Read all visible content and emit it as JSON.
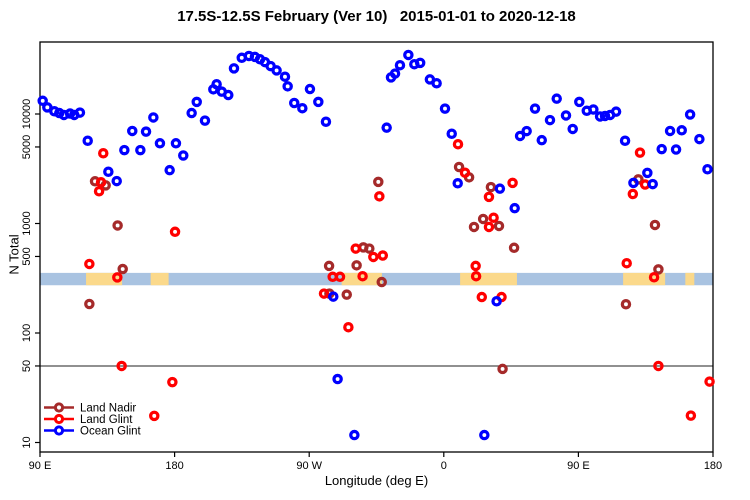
{
  "title": "17.5S-12.5S February (Ver 10)   2015-01-01 to 2020-12-18",
  "axes": {
    "x": {
      "label": "Longitude (deg E)",
      "note": "axis spans 450 deg starting at 90E going east; lon>180 wraps (270=90W, 360=0, 450=90E, 540=180)",
      "range": [
        90,
        540
      ],
      "ticks": [
        {
          "lon": 90,
          "label": "90 E"
        },
        {
          "lon": 180,
          "label": "180"
        },
        {
          "lon": 270,
          "label": "90 W"
        },
        {
          "lon": 360,
          "label": "0"
        },
        {
          "lon": 450,
          "label": "90 E"
        },
        {
          "lon": 540,
          "label": "180"
        }
      ]
    },
    "y": {
      "label": "N Total",
      "scale": "log",
      "range": [
        9,
        47000
      ],
      "ticks": [
        {
          "value": 10,
          "label": "10"
        },
        {
          "value": 50,
          "label": "50"
        },
        {
          "value": 100,
          "label": "100"
        },
        {
          "value": 500,
          "label": "500"
        },
        {
          "value": 1000,
          "label": "1000"
        },
        {
          "value": 5000,
          "label": "5000"
        },
        {
          "value": 10000,
          "label": "10000"
        }
      ]
    }
  },
  "reference": {
    "hline_N": 50,
    "hline_color": "#4d4d4d",
    "band": {
      "N_low": 273,
      "N_high": 354,
      "color": "#a9c3e1"
    },
    "land_patches": {
      "color": "#fbd98b",
      "lon_ranges": [
        [
          120.8,
          144.9
        ],
        [
          164,
          176
        ],
        [
          291.7,
          318.6
        ],
        [
          370.9,
          408.9
        ],
        [
          479.9,
          508.0
        ],
        [
          521.5,
          527.5
        ]
      ]
    }
  },
  "legend": {
    "entries": [
      {
        "label": "Land Nadir",
        "color": "#a52a2a"
      },
      {
        "label": "Land Glint",
        "color": "#ff0000"
      },
      {
        "label": "Ocean Glint",
        "color": "#0000ff"
      }
    ]
  },
  "chart_data": {
    "type": "scatter",
    "title": "17.5S-12.5S February (Ver 10)   2015-01-01 to 2020-12-18",
    "xlabel": "Longitude (deg E)",
    "ylabel": "N Total",
    "x_unit": "degrees along axis, 90..540 (wrapping)",
    "series": [
      {
        "name": "Land Nadir",
        "color": "#a52a2a",
        "points": [
          [
            123,
            184
          ],
          [
            126.8,
            2430
          ],
          [
            133.9,
            2230
          ],
          [
            141.9,
            960
          ],
          [
            145.3,
            384
          ],
          [
            283.3,
            410
          ],
          [
            283.5,
            229
          ],
          [
            295.1,
            224
          ],
          [
            301.7,
            415
          ],
          [
            306.2,
            605
          ],
          [
            310.2,
            590
          ],
          [
            316.2,
            2400
          ],
          [
            318.5,
            292
          ],
          [
            370.2,
            3280
          ],
          [
            376.9,
            2640
          ],
          [
            380.2,
            930
          ],
          [
            386.3,
            1100
          ],
          [
            391.5,
            2150
          ],
          [
            396.9,
            950
          ],
          [
            399.3,
            47
          ],
          [
            407,
            600
          ],
          [
            481.8,
            183
          ],
          [
            490.1,
            2530
          ],
          [
            501.2,
            970
          ],
          [
            503.5,
            381
          ]
        ]
      },
      {
        "name": "Land Glint",
        "color": "#ff0000",
        "points": [
          [
            123,
            427
          ],
          [
            129.5,
            1970
          ],
          [
            130.8,
            2380
          ],
          [
            132.3,
            4380
          ],
          [
            141.7,
            322
          ],
          [
            144.6,
            50
          ],
          [
            166.4,
            17.5
          ],
          [
            178.5,
            35.6
          ],
          [
            180.3,
            840
          ],
          [
            279.9,
            229
          ],
          [
            285.7,
            326
          ],
          [
            290.6,
            326
          ],
          [
            296.2,
            113
          ],
          [
            301.1,
            590
          ],
          [
            305.7,
            330
          ],
          [
            312.9,
            495
          ],
          [
            316.9,
            1770
          ],
          [
            319.2,
            510
          ],
          [
            369.5,
            5300
          ],
          [
            374.2,
            2910
          ],
          [
            381.3,
            410
          ],
          [
            381.6,
            330
          ],
          [
            385.4,
            213
          ],
          [
            390.2,
            1750
          ],
          [
            390.2,
            930
          ],
          [
            393.3,
            1130
          ],
          [
            398.6,
            213
          ],
          [
            406,
            2350
          ],
          [
            482.3,
            434
          ],
          [
            486.4,
            1860
          ],
          [
            491.2,
            4440
          ],
          [
            494.6,
            2270
          ],
          [
            500.6,
            323
          ],
          [
            503.5,
            50
          ],
          [
            525.2,
            17.6
          ],
          [
            537.7,
            36
          ]
        ]
      },
      {
        "name": "Ocean Glint",
        "color": "#0000ff",
        "points": [
          [
            91.8,
            13200
          ],
          [
            94.9,
            11500
          ],
          [
            99.6,
            10600
          ],
          [
            102.9,
            10200
          ],
          [
            106,
            9800
          ],
          [
            110.1,
            10100
          ],
          [
            112.9,
            9800
          ],
          [
            116.7,
            10300
          ],
          [
            121.9,
            5700
          ],
          [
            135.7,
            2970
          ],
          [
            141.3,
            2440
          ],
          [
            146.4,
            4680
          ],
          [
            151.7,
            7000
          ],
          [
            157.1,
            4680
          ],
          [
            160.9,
            6900
          ],
          [
            165.8,
            9300
          ],
          [
            170.2,
            5400
          ],
          [
            176.7,
            3070
          ],
          [
            180.9,
            5400
          ],
          [
            185.8,
            4180
          ],
          [
            191.4,
            10200
          ],
          [
            194.8,
            12900
          ],
          [
            200.3,
            8700
          ],
          [
            205.9,
            16800
          ],
          [
            208.1,
            18700
          ],
          [
            211.5,
            16000
          ],
          [
            215.9,
            14900
          ],
          [
            219.7,
            26100
          ],
          [
            224.9,
            32600
          ],
          [
            229.7,
            33900
          ],
          [
            233.7,
            33200
          ],
          [
            237.1,
            31600
          ],
          [
            240.4,
            29800
          ],
          [
            244.2,
            27400
          ],
          [
            248.2,
            25000
          ],
          [
            253.8,
            21900
          ],
          [
            255.6,
            17900
          ],
          [
            260,
            12600
          ],
          [
            265.4,
            11300
          ],
          [
            270.5,
            16900
          ],
          [
            276.1,
            12900
          ],
          [
            281.2,
            8500
          ],
          [
            286.1,
            215
          ],
          [
            289,
            38
          ],
          [
            300.2,
            11.7
          ],
          [
            321.8,
            7500
          ],
          [
            324.7,
            21600
          ],
          [
            327.4,
            23400
          ],
          [
            330.7,
            27900
          ],
          [
            336.3,
            34600
          ],
          [
            340.3,
            28500
          ],
          [
            344.2,
            29300
          ],
          [
            350.7,
            20700
          ],
          [
            355.2,
            19100
          ],
          [
            360.8,
            11200
          ],
          [
            365.3,
            6600
          ],
          [
            369.3,
            2330
          ],
          [
            387.1,
            11.7
          ],
          [
            395.3,
            195
          ],
          [
            397.5,
            2080
          ],
          [
            407.4,
            1380
          ],
          [
            411,
            6300
          ],
          [
            415.4,
            6980
          ],
          [
            421,
            11200
          ],
          [
            425.5,
            5770
          ],
          [
            431,
            8800
          ],
          [
            435.5,
            13800
          ],
          [
            441.7,
            9700
          ],
          [
            446.2,
            7300
          ],
          [
            450.6,
            12900
          ],
          [
            455.6,
            10700
          ],
          [
            460,
            11000
          ],
          [
            464.5,
            9500
          ],
          [
            467.8,
            9600
          ],
          [
            471.2,
            9800
          ],
          [
            475.2,
            10500
          ],
          [
            481.2,
            5700
          ],
          [
            486.8,
            2350
          ],
          [
            496.1,
            2900
          ],
          [
            499.7,
            2290
          ],
          [
            505.7,
            4780
          ],
          [
            511.3,
            7000
          ],
          [
            515.3,
            4740
          ],
          [
            519.1,
            7100
          ],
          [
            524.7,
            9900
          ],
          [
            530.9,
            5900
          ],
          [
            536.3,
            3130
          ]
        ]
      }
    ]
  }
}
